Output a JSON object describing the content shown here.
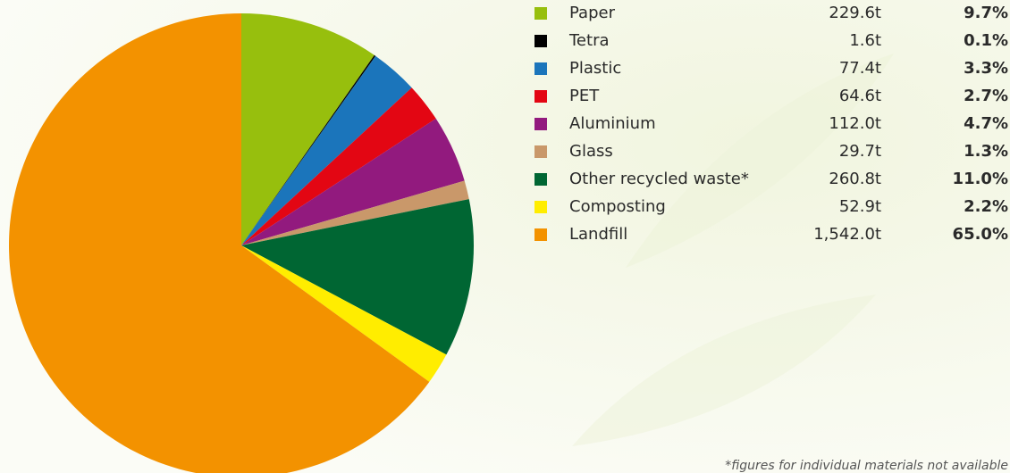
{
  "chart_data": {
    "type": "pie",
    "categories": [
      "Paper",
      "Tetra",
      "Plastic",
      "PET",
      "Aluminium",
      "Glass",
      "Other recycled waste*",
      "Composting",
      "Landfill"
    ],
    "values": [
      9.7,
      0.1,
      3.3,
      2.7,
      4.7,
      1.3,
      11.0,
      2.2,
      65.0
    ],
    "value_labels": [
      "9.7%",
      "0.1%",
      "3.3%",
      "2.7%",
      "4.7%",
      "1.3%",
      "11.0%",
      "2.2%",
      "65.0%"
    ],
    "colors": [
      "#97bf0d",
      "#000000",
      "#1b75bb",
      "#e30613",
      "#921a7e",
      "#c9986a",
      "#006633",
      "#ffed00",
      "#f39200"
    ],
    "tonnes": {
      "values": [
        229.6,
        1.6,
        77.4,
        64.6,
        112.0,
        29.7,
        260.8,
        52.9,
        1542.0
      ],
      "value_labels": [
        "229.6t",
        "1.6t",
        "77.4t",
        "64.6t",
        "112.0t",
        "29.7t",
        "260.8t",
        "52.9t",
        "1,542.0t"
      ]
    },
    "note": "*figures for individual materials not available"
  }
}
